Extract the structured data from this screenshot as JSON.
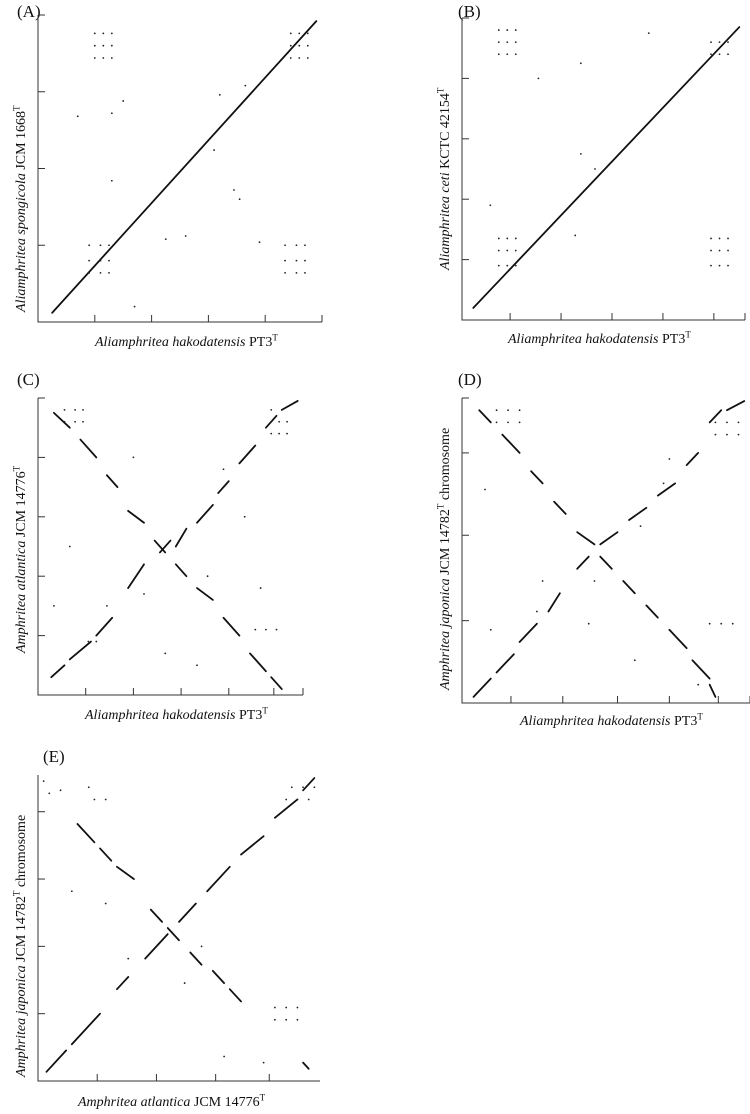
{
  "chart_data": [
    {
      "type": "scatter",
      "panel": "(A)",
      "xlabel": {
        "genus_species": "Aliamphritea hakodatensis",
        "strain": "PT3",
        "sup": "T"
      },
      "ylabel": {
        "genus_species": "Aliamphritea spongicola",
        "strain": "JCM 1668",
        "sup": "T"
      },
      "xticks": [
        0.2,
        0.4,
        0.6,
        0.8,
        1.0
      ],
      "yticks": [
        0.25,
        0.5,
        0.75,
        1.0
      ],
      "segments": [
        [
          0.05,
          0.03,
          0.98,
          0.98
        ]
      ],
      "dots": [
        [
          0.2,
          0.94
        ],
        [
          0.23,
          0.94
        ],
        [
          0.26,
          0.94
        ],
        [
          0.2,
          0.9
        ],
        [
          0.23,
          0.9
        ],
        [
          0.26,
          0.9
        ],
        [
          0.2,
          0.86
        ],
        [
          0.23,
          0.86
        ],
        [
          0.26,
          0.86
        ],
        [
          0.89,
          0.94
        ],
        [
          0.92,
          0.94
        ],
        [
          0.95,
          0.94
        ],
        [
          0.89,
          0.9
        ],
        [
          0.92,
          0.9
        ],
        [
          0.95,
          0.9
        ],
        [
          0.89,
          0.86
        ],
        [
          0.92,
          0.86
        ],
        [
          0.95,
          0.86
        ],
        [
          0.18,
          0.25
        ],
        [
          0.22,
          0.25
        ],
        [
          0.25,
          0.25
        ],
        [
          0.18,
          0.2
        ],
        [
          0.22,
          0.2
        ],
        [
          0.25,
          0.2
        ],
        [
          0.18,
          0.16
        ],
        [
          0.22,
          0.16
        ],
        [
          0.25,
          0.16
        ],
        [
          0.87,
          0.25
        ],
        [
          0.91,
          0.25
        ],
        [
          0.94,
          0.25
        ],
        [
          0.87,
          0.2
        ],
        [
          0.91,
          0.2
        ],
        [
          0.94,
          0.2
        ],
        [
          0.87,
          0.16
        ],
        [
          0.91,
          0.16
        ],
        [
          0.94,
          0.16
        ],
        [
          0.3,
          0.72
        ],
        [
          0.26,
          0.68
        ],
        [
          0.14,
          0.67
        ],
        [
          0.64,
          0.74
        ],
        [
          0.73,
          0.77
        ],
        [
          0.26,
          0.46
        ],
        [
          0.69,
          0.43
        ],
        [
          0.71,
          0.4
        ],
        [
          0.45,
          0.27
        ],
        [
          0.52,
          0.28
        ],
        [
          0.34,
          0.05
        ],
        [
          0.78,
          0.26
        ],
        [
          0.62,
          0.56
        ]
      ]
    },
    {
      "type": "scatter",
      "panel": "(B)",
      "xlabel": {
        "genus_species": "Aliamphritea hakodatensis",
        "strain": "PT3",
        "sup": "T"
      },
      "ylabel": {
        "genus_species": "Aliamphritea ceti",
        "strain": "KCTC 42154",
        "sup": "T"
      },
      "xticks": [
        0.17,
        0.35,
        0.53,
        0.71,
        0.89,
        1.0
      ],
      "yticks": [
        0.2,
        0.4,
        0.6,
        0.8,
        1.0
      ],
      "segments": [
        [
          0.04,
          0.04,
          0.98,
          0.97
        ]
      ],
      "dots": [
        [
          0.13,
          0.96
        ],
        [
          0.16,
          0.96
        ],
        [
          0.19,
          0.96
        ],
        [
          0.13,
          0.92
        ],
        [
          0.16,
          0.92
        ],
        [
          0.19,
          0.92
        ],
        [
          0.13,
          0.88
        ],
        [
          0.16,
          0.88
        ],
        [
          0.19,
          0.88
        ],
        [
          0.88,
          0.92
        ],
        [
          0.91,
          0.92
        ],
        [
          0.94,
          0.92
        ],
        [
          0.88,
          0.88
        ],
        [
          0.91,
          0.88
        ],
        [
          0.94,
          0.88
        ],
        [
          0.13,
          0.27
        ],
        [
          0.16,
          0.27
        ],
        [
          0.19,
          0.27
        ],
        [
          0.13,
          0.23
        ],
        [
          0.16,
          0.23
        ],
        [
          0.19,
          0.23
        ],
        [
          0.13,
          0.18
        ],
        [
          0.16,
          0.18
        ],
        [
          0.19,
          0.18
        ],
        [
          0.88,
          0.27
        ],
        [
          0.91,
          0.27
        ],
        [
          0.94,
          0.27
        ],
        [
          0.88,
          0.23
        ],
        [
          0.91,
          0.23
        ],
        [
          0.94,
          0.23
        ],
        [
          0.88,
          0.18
        ],
        [
          0.91,
          0.18
        ],
        [
          0.94,
          0.18
        ],
        [
          0.27,
          0.8
        ],
        [
          0.47,
          0.5
        ],
        [
          0.42,
          0.55
        ],
        [
          0.42,
          0.85
        ],
        [
          0.1,
          0.38
        ],
        [
          0.66,
          0.95
        ],
        [
          0.4,
          0.28
        ]
      ]
    },
    {
      "type": "scatter",
      "panel": "(C)",
      "xlabel": {
        "genus_species": "Aliamphritea hakodatensis",
        "strain": "PT3",
        "sup": "T"
      },
      "ylabel": {
        "genus_species": "Amphritea atlantica",
        "strain": "JCM 14776",
        "sup": "T"
      },
      "xticks": [
        0.18,
        0.36,
        0.54,
        0.72,
        0.89,
        1.0
      ],
      "yticks": [
        0.2,
        0.4,
        0.6,
        0.8,
        1.0
      ],
      "segments": [
        [
          0.05,
          0.06,
          0.1,
          0.1
        ],
        [
          0.12,
          0.12,
          0.2,
          0.18
        ],
        [
          0.22,
          0.2,
          0.28,
          0.26
        ],
        [
          0.34,
          0.36,
          0.4,
          0.44
        ],
        [
          0.46,
          0.48,
          0.5,
          0.52
        ],
        [
          0.52,
          0.5,
          0.56,
          0.56
        ],
        [
          0.6,
          0.58,
          0.66,
          0.64
        ],
        [
          0.68,
          0.68,
          0.72,
          0.72
        ],
        [
          0.76,
          0.78,
          0.82,
          0.84
        ],
        [
          0.86,
          0.9,
          0.9,
          0.94
        ],
        [
          0.92,
          0.96,
          0.98,
          0.99
        ],
        [
          0.06,
          0.95,
          0.12,
          0.9
        ],
        [
          0.16,
          0.86,
          0.22,
          0.8
        ],
        [
          0.26,
          0.74,
          0.3,
          0.7
        ],
        [
          0.34,
          0.62,
          0.4,
          0.58
        ],
        [
          0.44,
          0.52,
          0.48,
          0.48
        ],
        [
          0.52,
          0.44,
          0.56,
          0.4
        ],
        [
          0.6,
          0.36,
          0.66,
          0.32
        ],
        [
          0.7,
          0.26,
          0.76,
          0.2
        ],
        [
          0.8,
          0.14,
          0.86,
          0.08
        ],
        [
          0.88,
          0.06,
          0.92,
          0.02
        ]
      ],
      "dots": [
        [
          0.1,
          0.96
        ],
        [
          0.14,
          0.96
        ],
        [
          0.17,
          0.96
        ],
        [
          0.1,
          0.92
        ],
        [
          0.14,
          0.92
        ],
        [
          0.17,
          0.92
        ],
        [
          0.88,
          0.92
        ],
        [
          0.91,
          0.92
        ],
        [
          0.94,
          0.92
        ],
        [
          0.88,
          0.88
        ],
        [
          0.91,
          0.88
        ],
        [
          0.94,
          0.88
        ],
        [
          0.88,
          0.96
        ],
        [
          0.92,
          0.96
        ],
        [
          0.19,
          0.18
        ],
        [
          0.22,
          0.18
        ],
        [
          0.82,
          0.22
        ],
        [
          0.86,
          0.22
        ],
        [
          0.9,
          0.22
        ],
        [
          0.26,
          0.3
        ],
        [
          0.4,
          0.34
        ],
        [
          0.64,
          0.4
        ],
        [
          0.78,
          0.6
        ],
        [
          0.84,
          0.36
        ],
        [
          0.12,
          0.5
        ],
        [
          0.36,
          0.8
        ],
        [
          0.7,
          0.76
        ],
        [
          0.06,
          0.3
        ],
        [
          0.48,
          0.14
        ],
        [
          0.6,
          0.1
        ]
      ]
    },
    {
      "type": "scatter",
      "panel": "(D)",
      "xlabel": {
        "genus_species": "Aliamphritea hakodatensis",
        "strain": "PT3",
        "sup": "T"
      },
      "ylabel": {
        "genus_species": "Amphritea japonica",
        "strain": "JCM 14782",
        "sup": "T",
        "suffix": "chromosome"
      },
      "xticks": [
        0.17,
        0.35,
        0.54,
        0.72,
        0.89,
        1.0
      ],
      "yticks": [
        0.27,
        0.55,
        0.82,
        1.0
      ],
      "segments": [
        [
          0.04,
          0.02,
          0.1,
          0.08
        ],
        [
          0.12,
          0.1,
          0.18,
          0.16
        ],
        [
          0.2,
          0.2,
          0.26,
          0.26
        ],
        [
          0.3,
          0.3,
          0.34,
          0.36
        ],
        [
          0.4,
          0.44,
          0.44,
          0.48
        ],
        [
          0.48,
          0.52,
          0.54,
          0.56
        ],
        [
          0.58,
          0.6,
          0.64,
          0.64
        ],
        [
          0.68,
          0.68,
          0.74,
          0.72
        ],
        [
          0.78,
          0.78,
          0.82,
          0.82
        ],
        [
          0.86,
          0.92,
          0.9,
          0.96
        ],
        [
          0.92,
          0.96,
          0.98,
          0.99
        ],
        [
          0.06,
          0.96,
          0.1,
          0.92
        ],
        [
          0.14,
          0.88,
          0.2,
          0.82
        ],
        [
          0.24,
          0.76,
          0.28,
          0.72
        ],
        [
          0.32,
          0.66,
          0.36,
          0.62
        ],
        [
          0.4,
          0.56,
          0.46,
          0.52
        ],
        [
          0.48,
          0.48,
          0.52,
          0.44
        ],
        [
          0.56,
          0.4,
          0.6,
          0.36
        ],
        [
          0.64,
          0.32,
          0.68,
          0.28
        ],
        [
          0.72,
          0.24,
          0.78,
          0.18
        ],
        [
          0.8,
          0.14,
          0.86,
          0.08
        ],
        [
          0.86,
          0.06,
          0.88,
          0.02
        ]
      ],
      "dots": [
        [
          0.12,
          0.96
        ],
        [
          0.16,
          0.96
        ],
        [
          0.2,
          0.96
        ],
        [
          0.12,
          0.92
        ],
        [
          0.16,
          0.92
        ],
        [
          0.2,
          0.92
        ],
        [
          0.88,
          0.92
        ],
        [
          0.92,
          0.92
        ],
        [
          0.96,
          0.92
        ],
        [
          0.88,
          0.88
        ],
        [
          0.92,
          0.88
        ],
        [
          0.96,
          0.88
        ],
        [
          0.86,
          0.26
        ],
        [
          0.9,
          0.26
        ],
        [
          0.94,
          0.26
        ],
        [
          0.1,
          0.24
        ],
        [
          0.26,
          0.3
        ],
        [
          0.44,
          0.26
        ],
        [
          0.46,
          0.4
        ],
        [
          0.7,
          0.72
        ],
        [
          0.72,
          0.8
        ],
        [
          0.08,
          0.7
        ],
        [
          0.6,
          0.14
        ],
        [
          0.82,
          0.06
        ],
        [
          0.28,
          0.4
        ],
        [
          0.62,
          0.58
        ]
      ]
    },
    {
      "type": "scatter",
      "panel": "(E)",
      "xlabel": {
        "genus_species": "Amphritea atlantica",
        "strain": "JCM 14776",
        "sup": "T"
      },
      "ylabel": {
        "genus_species": "Amphritea japonica",
        "strain": "JCM 14782",
        "sup": "T",
        "suffix": "chromosome"
      },
      "xticks": [
        0.21,
        0.42,
        0.63,
        0.82
      ],
      "yticks": [
        0.22,
        0.44,
        0.66,
        0.88
      ],
      "segments": [
        [
          0.03,
          0.03,
          0.1,
          0.1
        ],
        [
          0.12,
          0.12,
          0.22,
          0.22
        ],
        [
          0.28,
          0.3,
          0.32,
          0.34
        ],
        [
          0.38,
          0.4,
          0.46,
          0.48
        ],
        [
          0.5,
          0.52,
          0.56,
          0.58
        ],
        [
          0.6,
          0.62,
          0.68,
          0.7
        ],
        [
          0.72,
          0.74,
          0.8,
          0.8
        ],
        [
          0.84,
          0.86,
          0.92,
          0.92
        ],
        [
          0.94,
          0.95,
          0.98,
          0.99
        ],
        [
          0.14,
          0.84,
          0.2,
          0.78
        ],
        [
          0.22,
          0.76,
          0.26,
          0.72
        ],
        [
          0.28,
          0.7,
          0.34,
          0.66
        ],
        [
          0.4,
          0.56,
          0.44,
          0.52
        ],
        [
          0.46,
          0.5,
          0.5,
          0.46
        ],
        [
          0.54,
          0.42,
          0.58,
          0.38
        ],
        [
          0.62,
          0.36,
          0.66,
          0.32
        ],
        [
          0.68,
          0.3,
          0.72,
          0.26
        ],
        [
          0.94,
          0.06,
          0.96,
          0.04
        ]
      ],
      "dots": [
        [
          0.02,
          0.98
        ],
        [
          0.04,
          0.94
        ],
        [
          0.08,
          0.95
        ],
        [
          0.18,
          0.96
        ],
        [
          0.2,
          0.92
        ],
        [
          0.24,
          0.92
        ],
        [
          0.9,
          0.96
        ],
        [
          0.94,
          0.96
        ],
        [
          0.98,
          0.96
        ],
        [
          0.88,
          0.92
        ],
        [
          0.92,
          0.92
        ],
        [
          0.96,
          0.92
        ],
        [
          0.84,
          0.24
        ],
        [
          0.88,
          0.24
        ],
        [
          0.92,
          0.24
        ],
        [
          0.84,
          0.2
        ],
        [
          0.88,
          0.2
        ],
        [
          0.92,
          0.2
        ],
        [
          0.66,
          0.08
        ],
        [
          0.8,
          0.06
        ],
        [
          0.12,
          0.62
        ],
        [
          0.24,
          0.58
        ],
        [
          0.58,
          0.44
        ],
        [
          0.52,
          0.32
        ],
        [
          0.32,
          0.4
        ]
      ]
    }
  ]
}
